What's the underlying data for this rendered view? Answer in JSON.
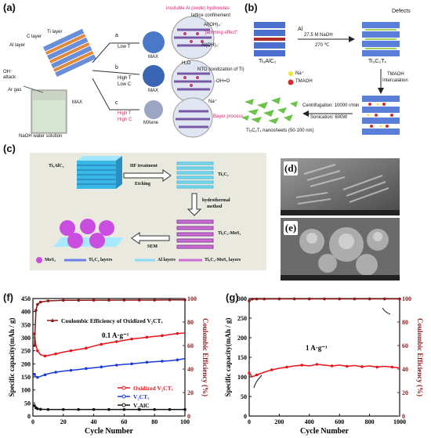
{
  "panels": {
    "a": "(a)",
    "b": "(b)",
    "c": "(c)",
    "d": "(d)",
    "e": "(e)",
    "f": "(f)",
    "g": "(g)"
  },
  "a": {
    "c_layer": "C layer",
    "ti_layer": "Ti layer",
    "al_layer": "Al layer",
    "oh": "OH⁻",
    "attack": "attack",
    "ar": "Ar gas",
    "max": "MAX",
    "naoh": "NaOH water solution",
    "row_a": "a",
    "row_b": "b",
    "row_c": "c",
    "low_t": "Low T",
    "high_t": "High T",
    "low_c": "Low C",
    "high_t2": "High T",
    "high_c": "High C",
    "prod1": "MAX",
    "prod2": "MAX",
    "prod3": "MXene",
    "insoluble": "insoluble Al (oxide) hydroxides",
    "lattice": "lattice confinement",
    "aloh3": "Al(OH)₃⁻",
    "aloh4": "Al(OH)₄⁻",
    "jamming": "\"jamming effect\"",
    "h2o": "H₂O",
    "nto": "NTO (oxidization of Ti)",
    "ohtio": "-OH=O",
    "na": "Na⁺",
    "bayer": "Bayer process"
  },
  "b": {
    "al": "Al",
    "naoh": "27.5 M NaOH",
    "temp": "270 ℃",
    "ti3alc2": "Ti₃AlC₂",
    "defects": "Defects",
    "ti3c2tx": "Ti₃C₂Tₓ",
    "na": "Na⁺",
    "tmaoh": "TMAOH",
    "tmaoh_int": "TMAOH",
    "intercalation": "Intercalation",
    "centrifugation": "Centrifugation: 10000 r/min",
    "sonication": "Sonication: 600W",
    "nanosheets": "Ti₃C₂Tₓ nanosheets (50-100 nm)"
  },
  "c": {
    "ti3alc2": "Ti₃AlC₂",
    "hf": "HF treatment",
    "etching": "Etching",
    "ti3c2": "Ti₃C₂",
    "hydro": "hydrothermal",
    "method": "method",
    "ti3c2mos2": "Ti₃C₂-MoS₂",
    "sem": "SEM",
    "leg_mos2": "MoS₂",
    "leg_ti3c2": "Ti₃C₂ layers",
    "leg_al": "Al layers",
    "leg_ti3c2mos2": "Ti₃C₂-MoS₂ layers"
  },
  "colors": {
    "black": "#111111",
    "red": "#e8141b",
    "blue": "#1a3ad6",
    "darkred": "#8b1a1a",
    "pinktext": "#d6246e"
  },
  "chart_data": [
    {
      "type": "line",
      "ylabel": "Specific capacity(mAh / g)",
      "y2label": "Coulombic Efficiency (%)",
      "xlabel": "Cycle Number",
      "xlim": [
        0,
        100
      ],
      "ylim": [
        0,
        450
      ],
      "y2lim": [
        0,
        100
      ],
      "xticks": [
        0,
        20,
        40,
        60,
        80,
        100
      ],
      "yticks": [
        0,
        50,
        100,
        150,
        200,
        250,
        300,
        350,
        400,
        450
      ],
      "y2ticks": [
        0,
        20,
        40,
        60,
        80,
        100
      ],
      "annotation": "0.1 A·g⁻¹",
      "ce_legend": "Coulombic Efficiency of Oxidized V₂CTₓ",
      "legend": [
        "Oxidized V₂CTₓ",
        "V₂CTₓ",
        "V₂AlC"
      ],
      "series": [
        {
          "name": "Oxidized V₂CTₓ",
          "color": "#e8141b",
          "x": [
            1,
            2,
            3,
            5,
            8,
            10,
            15,
            20,
            25,
            30,
            35,
            40,
            45,
            50,
            55,
            60,
            65,
            70,
            75,
            80,
            85,
            90,
            95,
            100
          ],
          "values": [
            315,
            270,
            250,
            235,
            230,
            232,
            238,
            245,
            250,
            255,
            260,
            268,
            275,
            280,
            285,
            290,
            295,
            298,
            302,
            305,
            308,
            312,
            316,
            318
          ]
        },
        {
          "name": "V₂CTₓ",
          "color": "#1a3ad6",
          "x": [
            1,
            2,
            3,
            5,
            8,
            10,
            15,
            20,
            25,
            30,
            35,
            40,
            45,
            50,
            55,
            60,
            65,
            70,
            75,
            80,
            85,
            90,
            95,
            100
          ],
          "values": [
            160,
            150,
            148,
            152,
            158,
            162,
            168,
            172,
            175,
            178,
            182,
            185,
            188,
            192,
            195,
            198,
            200,
            203,
            206,
            208,
            210,
            212,
            215,
            220
          ]
        },
        {
          "name": "V₂AlC",
          "color": "#111111",
          "x": [
            1,
            2,
            3,
            5,
            10,
            20,
            30,
            40,
            50,
            60,
            70,
            80,
            90,
            100
          ],
          "values": [
            40,
            32,
            28,
            26,
            25,
            25,
            25,
            25,
            25,
            25,
            25,
            25,
            25,
            25
          ]
        },
        {
          "name": "Coulombic Efficiency of Oxidized V₂CTₓ",
          "axis": "right",
          "color": "#8b1a1a",
          "x": [
            1,
            2,
            3,
            5,
            10,
            20,
            30,
            40,
            50,
            60,
            70,
            80,
            90,
            100
          ],
          "values": [
            60,
            90,
            95,
            97,
            98,
            98.5,
            98.5,
            98.6,
            98.6,
            98.7,
            98.7,
            98.7,
            98.8,
            98.8
          ]
        }
      ]
    },
    {
      "type": "line",
      "ylabel": "Specific capacity(mAh / g)",
      "y2label": "Coulombic Efficiency (%)",
      "xlabel": "Cycle Number",
      "xlim": [
        0,
        1000
      ],
      "ylim": [
        0,
        300
      ],
      "y2lim": [
        0,
        100
      ],
      "xticks": [
        0,
        200,
        400,
        600,
        800,
        1000
      ],
      "yticks": [
        0,
        50,
        100,
        150,
        200,
        250,
        300
      ],
      "y2ticks": [
        0,
        20,
        40,
        60,
        80,
        100
      ],
      "annotation": "1 A·g⁻¹",
      "series": [
        {
          "name": "",
          "color": "#e8141b",
          "x": [
            0,
            20,
            50,
            100,
            150,
            200,
            250,
            300,
            350,
            400,
            450,
            500,
            550,
            600,
            650,
            700,
            750,
            800,
            850,
            900,
            950,
            1000
          ],
          "values": [
            110,
            100,
            105,
            112,
            118,
            122,
            125,
            128,
            130,
            128,
            132,
            130,
            128,
            130,
            127,
            129,
            126,
            128,
            125,
            127,
            125,
            123
          ]
        },
        {
          "name": "",
          "axis": "right",
          "color": "#8b1a1a",
          "x": [
            0,
            20,
            50,
            100,
            200,
            300,
            400,
            500,
            600,
            700,
            800,
            900,
            1000
          ],
          "values": [
            98,
            99.5,
            99.6,
            99.6,
            99.7,
            99.7,
            99.7,
            99.7,
            99.7,
            99.7,
            99.7,
            99.7,
            99.7
          ]
        }
      ]
    }
  ]
}
